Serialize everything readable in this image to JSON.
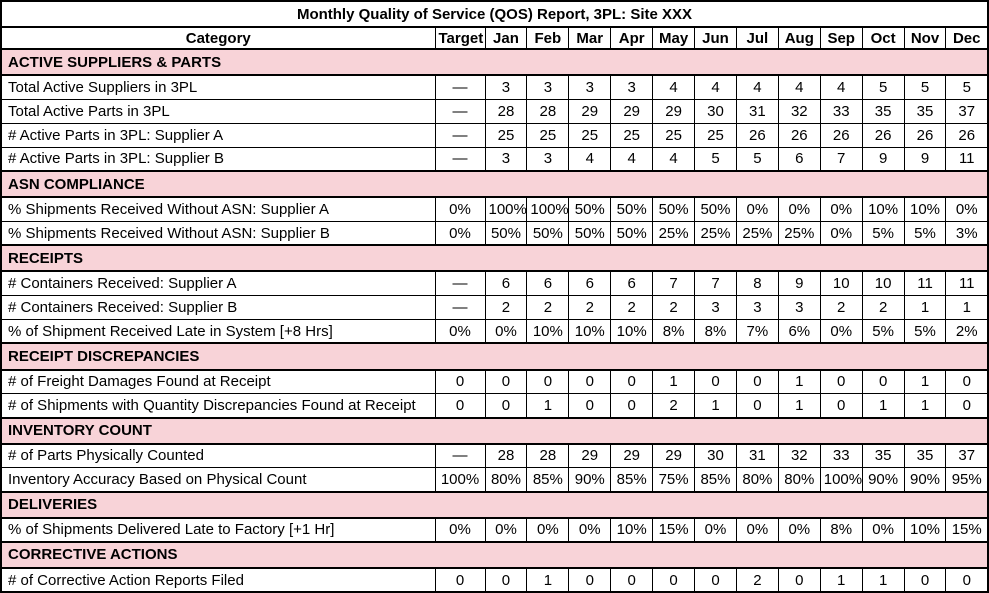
{
  "title": "Monthly Quality of Service (QOS) Report, 3PL: Site XXX",
  "columns": [
    "Category",
    "Target",
    "Jan",
    "Feb",
    "Mar",
    "Apr",
    "May",
    "Jun",
    "Jul",
    "Aug",
    "Sep",
    "Oct",
    "Nov",
    "Dec"
  ],
  "colors": {
    "section_header_bg": "#f8d3d8",
    "border": "#000000",
    "text": "#000000",
    "row_bg": "#ffffff"
  },
  "sections": [
    {
      "name": "ACTIVE SUPPLIERS & PARTS",
      "rows": [
        {
          "category": "Total Active Suppliers in 3PL",
          "target": "—",
          "values": [
            "3",
            "3",
            "3",
            "3",
            "4",
            "4",
            "4",
            "4",
            "4",
            "5",
            "5",
            "5"
          ]
        },
        {
          "category": "Total Active Parts in 3PL",
          "target": "—",
          "values": [
            "28",
            "28",
            "29",
            "29",
            "29",
            "30",
            "31",
            "32",
            "33",
            "35",
            "35",
            "37"
          ]
        },
        {
          "category": "# Active Parts in 3PL: Supplier A",
          "target": "—",
          "values": [
            "25",
            "25",
            "25",
            "25",
            "25",
            "25",
            "26",
            "26",
            "26",
            "26",
            "26",
            "26"
          ]
        },
        {
          "category": "# Active Parts in 3PL: Supplier B",
          "target": "—",
          "values": [
            "3",
            "3",
            "4",
            "4",
            "4",
            "5",
            "5",
            "6",
            "7",
            "9",
            "9",
            "11"
          ]
        }
      ]
    },
    {
      "name": "ASN COMPLIANCE",
      "rows": [
        {
          "category": "% Shipments Received Without ASN: Supplier A",
          "target": "0%",
          "values": [
            "100%",
            "100%",
            "50%",
            "50%",
            "50%",
            "50%",
            "0%",
            "0%",
            "0%",
            "10%",
            "10%",
            "0%"
          ]
        },
        {
          "category": "% Shipments Received Without ASN: Supplier B",
          "target": "0%",
          "values": [
            "50%",
            "50%",
            "50%",
            "50%",
            "25%",
            "25%",
            "25%",
            "25%",
            "0%",
            "5%",
            "5%",
            "3%"
          ]
        }
      ]
    },
    {
      "name": "RECEIPTS",
      "rows": [
        {
          "category": "# Containers Received: Supplier A",
          "target": "—",
          "values": [
            "6",
            "6",
            "6",
            "6",
            "7",
            "7",
            "8",
            "9",
            "10",
            "10",
            "11",
            "11"
          ]
        },
        {
          "category": "# Containers Received: Supplier B",
          "target": "—",
          "values": [
            "2",
            "2",
            "2",
            "2",
            "2",
            "3",
            "3",
            "3",
            "2",
            "2",
            "1",
            "1"
          ]
        },
        {
          "category": "% of Shipment Received Late in System [+8 Hrs]",
          "target": "0%",
          "values": [
            "0%",
            "10%",
            "10%",
            "10%",
            "8%",
            "8%",
            "7%",
            "6%",
            "0%",
            "5%",
            "5%",
            "2%"
          ]
        }
      ]
    },
    {
      "name": "RECEIPT DISCREPANCIES",
      "rows": [
        {
          "category": "# of Freight Damages Found at Receipt",
          "target": "0",
          "values": [
            "0",
            "0",
            "0",
            "0",
            "1",
            "0",
            "0",
            "1",
            "0",
            "0",
            "1",
            "0"
          ]
        },
        {
          "category": "# of Shipments with Quantity Discrepancies Found at Receipt",
          "target": "0",
          "values": [
            "0",
            "1",
            "0",
            "0",
            "2",
            "1",
            "0",
            "1",
            "0",
            "1",
            "1",
            "0"
          ]
        }
      ]
    },
    {
      "name": "INVENTORY COUNT",
      "rows": [
        {
          "category": "# of Parts Physically Counted",
          "target": "—",
          "values": [
            "28",
            "28",
            "29",
            "29",
            "29",
            "30",
            "31",
            "32",
            "33",
            "35",
            "35",
            "37"
          ]
        },
        {
          "category": "Inventory Accuracy Based on Physical Count",
          "target": "100%",
          "values": [
            "80%",
            "85%",
            "90%",
            "85%",
            "75%",
            "85%",
            "80%",
            "80%",
            "100%",
            "90%",
            "90%",
            "95%"
          ]
        }
      ]
    },
    {
      "name": "DELIVERIES",
      "rows": [
        {
          "category": "% of Shipments Delivered Late to Factory [+1 Hr]",
          "target": "0%",
          "values": [
            "0%",
            "0%",
            "0%",
            "10%",
            "15%",
            "0%",
            "0%",
            "0%",
            "8%",
            "0%",
            "10%",
            "15%"
          ]
        }
      ]
    },
    {
      "name": "CORRECTIVE ACTIONS",
      "rows": [
        {
          "category": "# of Corrective Action Reports Filed",
          "target": "0",
          "values": [
            "0",
            "1",
            "0",
            "0",
            "0",
            "0",
            "2",
            "0",
            "1",
            "1",
            "0",
            "0"
          ]
        }
      ]
    }
  ]
}
